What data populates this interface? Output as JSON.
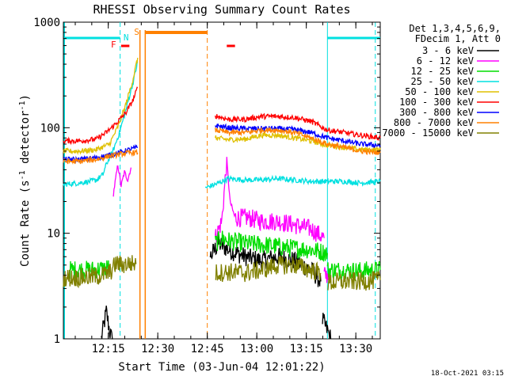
{
  "chart_data": {
    "type": "line",
    "title": "RHESSI Observing Summary Count Rates",
    "xlabel": "Start Time (03-Jun-04 12:01:22)",
    "ylabel": "Count Rate (s⁻¹ detector⁻¹)",
    "ylabel_text": "Count Rate (s",
    "ylabel_sup1": "-1",
    "ylabel_mid": " detector",
    "ylabel_sup2": "-1",
    "ylabel_end": ")",
    "yscale": "log",
    "ylim": [
      1,
      1000
    ],
    "xlim_minutes": [
      0,
      96
    ],
    "yticks": [
      {
        "label": "1",
        "value": 1
      },
      {
        "label": "10",
        "value": 10
      },
      {
        "label": "100",
        "value": 100
      },
      {
        "label": "1000",
        "value": 1000
      }
    ],
    "xticks": [
      {
        "label": "12:15",
        "minutes": 13.6
      },
      {
        "label": "12:30",
        "minutes": 28.6
      },
      {
        "label": "12:45",
        "minutes": 43.6
      },
      {
        "label": "13:00",
        "minutes": 58.6
      },
      {
        "label": "13:15",
        "minutes": 73.6
      },
      {
        "label": "13:30",
        "minutes": 88.6
      }
    ],
    "legend": {
      "position": "right",
      "header": [
        "Det 1,3,4,5,6,9,",
        "FDecim 1, Att 0"
      ],
      "entries": [
        {
          "label": "3 - 6 keV",
          "color": "#000000"
        },
        {
          "label": "6 - 12 keV",
          "color": "#ff00ff"
        },
        {
          "label": "12 - 25 keV",
          "color": "#00dd00"
        },
        {
          "label": "25 - 50 keV",
          "color": "#00e0e0"
        },
        {
          "label": "50 - 100 keV",
          "color": "#e0c000"
        },
        {
          "label": "100 - 300 keV",
          "color": "#ff0000"
        },
        {
          "label": "300 - 800 keV",
          "color": "#0000ff"
        },
        {
          "label": "800 - 7000 keV",
          "color": "#ff8000"
        },
        {
          "label": "7000 - 15000 keV",
          "color": "#808000"
        }
      ]
    },
    "flags": [
      {
        "label": "F",
        "color": "#ff0000"
      },
      {
        "label": "N",
        "color": "#00e0e0"
      },
      {
        "label": "S",
        "color": "#ff8000"
      }
    ],
    "series": [
      {
        "name": "3 - 6 keV",
        "color": "#000000",
        "segments": [
          [
            [
              11.5,
              1.0
            ],
            [
              13.0,
              1.8
            ],
            [
              14.0,
              1.2
            ],
            [
              15.0,
              0.9
            ]
          ],
          [
            [
              44.5,
              6
            ],
            [
              47,
              8
            ],
            [
              50,
              7
            ],
            [
              55,
              6
            ],
            [
              60,
              5.5
            ],
            [
              65,
              6
            ],
            [
              70,
              5.5
            ],
            [
              75,
              4.5
            ],
            [
              78,
              3.5
            ]
          ],
          [
            [
              78.5,
              1.5
            ],
            [
              80,
              1.2
            ],
            [
              81,
              1.0
            ]
          ]
        ]
      },
      {
        "name": "6 - 12 keV",
        "color": "#ff00ff",
        "segments": [
          [
            [
              15,
              22
            ],
            [
              16.5,
              45
            ],
            [
              17.5,
              28
            ],
            [
              18.5,
              38
            ],
            [
              19.5,
              32
            ],
            [
              20.5,
              42
            ]
          ],
          [
            [
              46,
              9
            ],
            [
              48,
              13
            ],
            [
              49.5,
              50
            ],
            [
              50.5,
              20
            ],
            [
              52,
              14
            ],
            [
              56,
              14
            ],
            [
              60,
              13
            ],
            [
              65,
              13
            ],
            [
              70,
              12
            ],
            [
              75,
              11
            ],
            [
              79,
              9
            ]
          ],
          [
            [
              79,
              4
            ],
            [
              80.5,
              4
            ]
          ]
        ]
      },
      {
        "name": "12 - 25 keV",
        "color": "#00dd00",
        "segments": [
          [
            [
              2,
              4.5
            ],
            [
              8,
              4.5
            ],
            [
              12,
              4.6
            ],
            [
              14,
              4.8
            ]
          ],
          [
            [
              46,
              8
            ],
            [
              48,
              9
            ],
            [
              50,
              8.5
            ],
            [
              55,
              8
            ],
            [
              60,
              7.8
            ],
            [
              65,
              7.5
            ],
            [
              70,
              7.2
            ],
            [
              75,
              7
            ],
            [
              80,
              6.5
            ]
          ],
          [
            [
              80,
              4.5
            ],
            [
              90,
              4.4
            ],
            [
              96,
              4.5
            ]
          ]
        ]
      },
      {
        "name": "25 - 50 keV",
        "color": "#00e0e0",
        "segments": [
          [
            [
              0,
              29
            ],
            [
              5,
              30
            ],
            [
              8,
              31
            ],
            [
              10,
              32
            ],
            [
              12,
              36
            ],
            [
              13,
              45
            ],
            [
              15,
              60
            ],
            [
              17,
              90
            ],
            [
              19,
              150
            ],
            [
              21,
              260
            ],
            [
              22.5,
              420
            ]
          ],
          [
            [
              43,
              27
            ],
            [
              46,
              29
            ],
            [
              50,
              33
            ],
            [
              55,
              32
            ],
            [
              60,
              32
            ],
            [
              65,
              33
            ],
            [
              70,
              32
            ],
            [
              75,
              31
            ],
            [
              80,
              31
            ],
            [
              85,
              31
            ],
            [
              90,
              30
            ],
            [
              96,
              31
            ]
          ]
        ]
      },
      {
        "name": "50 - 100 keV",
        "color": "#e0c000",
        "segments": [
          [
            [
              0,
              60
            ],
            [
              5,
              60
            ],
            [
              10,
              62
            ],
            [
              14,
              70
            ],
            [
              17,
              110
            ],
            [
              19,
              170
            ],
            [
              21,
              280
            ],
            [
              22.5,
              460
            ]
          ],
          [
            [
              46,
              80
            ],
            [
              50,
              77
            ],
            [
              55,
              78
            ],
            [
              60,
              85
            ],
            [
              65,
              85
            ],
            [
              70,
              80
            ],
            [
              75,
              75
            ],
            [
              80,
              68
            ],
            [
              85,
              65
            ],
            [
              90,
              62
            ],
            [
              96,
              62
            ]
          ]
        ]
      },
      {
        "name": "100 - 300 keV",
        "color": "#ff0000",
        "segments": [
          [
            [
              0,
              75
            ],
            [
              5,
              75
            ],
            [
              10,
              78
            ],
            [
              13,
              90
            ],
            [
              16,
              110
            ],
            [
              19,
              140
            ],
            [
              21,
              180
            ],
            [
              22.5,
              240
            ]
          ],
          [
            [
              46,
              130
            ],
            [
              50,
              120
            ],
            [
              55,
              120
            ],
            [
              60,
              128
            ],
            [
              65,
              128
            ],
            [
              70,
              125
            ],
            [
              75,
              115
            ],
            [
              80,
              95
            ],
            [
              85,
              90
            ],
            [
              90,
              85
            ],
            [
              96,
              80
            ]
          ]
        ]
      },
      {
        "name": "300 - 800 keV",
        "color": "#0000ff",
        "segments": [
          [
            [
              0,
              50
            ],
            [
              5,
              50
            ],
            [
              10,
              52
            ],
            [
              14,
              55
            ],
            [
              17,
              58
            ],
            [
              20,
              62
            ],
            [
              22.5,
              65
            ]
          ],
          [
            [
              46,
              105
            ],
            [
              50,
              100
            ],
            [
              55,
              98
            ],
            [
              60,
              98
            ],
            [
              65,
              98
            ],
            [
              70,
              96
            ],
            [
              75,
              90
            ],
            [
              80,
              80
            ],
            [
              85,
              75
            ],
            [
              90,
              70
            ],
            [
              96,
              68
            ]
          ]
        ]
      },
      {
        "name": "800 - 7000 keV",
        "color": "#ff8000",
        "segments": [
          [
            [
              0,
              48
            ],
            [
              5,
              48
            ],
            [
              10,
              50
            ],
            [
              14,
              54
            ],
            [
              17,
              56
            ],
            [
              20,
              58
            ],
            [
              22.5,
              58
            ]
          ],
          [
            [
              46,
              95
            ],
            [
              50,
              90
            ],
            [
              55,
              90
            ],
            [
              60,
              95
            ],
            [
              65,
              95
            ],
            [
              70,
              90
            ],
            [
              75,
              80
            ],
            [
              80,
              70
            ],
            [
              85,
              65
            ],
            [
              90,
              60
            ],
            [
              96,
              58
            ]
          ]
        ]
      },
      {
        "name": "7000 - 15000 keV",
        "color": "#808000",
        "segments": [
          [
            [
              0,
              3.8
            ],
            [
              5,
              3.8
            ],
            [
              10,
              3.9
            ],
            [
              14,
              4.2
            ],
            [
              16,
              5.2
            ],
            [
              18,
              5.0
            ],
            [
              20,
              5.2
            ],
            [
              22,
              5.1
            ]
          ],
          [
            [
              46,
              4.2
            ],
            [
              50,
              4.3
            ],
            [
              55,
              4.2
            ],
            [
              60,
              4.5
            ],
            [
              65,
              5.0
            ],
            [
              70,
              5.0
            ],
            [
              75,
              4.5
            ],
            [
              78,
              4.2
            ]
          ],
          [
            [
              80,
              3.4
            ],
            [
              85,
              3.5
            ],
            [
              90,
              3.5
            ],
            [
              96,
              3.6
            ]
          ]
        ]
      }
    ]
  },
  "footer": {
    "timestamp": "18-Oct-2021 03:15"
  }
}
